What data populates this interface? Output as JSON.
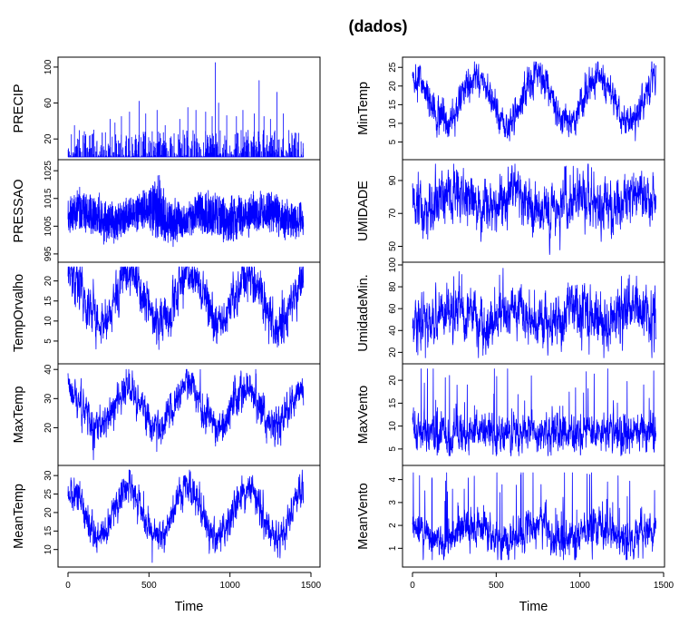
{
  "chart_data": {
    "type": "line",
    "title": "(dados)",
    "line_color": "#0000ff",
    "x_range": [
      0,
      1450
    ],
    "columns": [
      {
        "xlabel": "Time",
        "xticks": [
          0,
          500,
          1000,
          1500
        ],
        "xtick_labels": [
          "0",
          "500",
          "1000",
          "1500"
        ],
        "panels": [
          {
            "name": "PRECIP",
            "ylabel": "PRECIP",
            "ylim": [
              0,
              108
            ],
            "yticks": [
              20,
              60,
              100
            ],
            "ytick_labels": [
              "20",
              "60",
              "100"
            ],
            "kind": "precip",
            "spikes": [
              [
                40,
                35
              ],
              [
                110,
                25
              ],
              [
                160,
                30
              ],
              [
                260,
                42
              ],
              [
                290,
                38
              ],
              [
                330,
                45
              ],
              [
                380,
                50
              ],
              [
                440,
                62
              ],
              [
                480,
                48
              ],
              [
                550,
                52
              ],
              [
                600,
                35
              ],
              [
                690,
                42
              ],
              [
                740,
                55
              ],
              [
                790,
                52
              ],
              [
                850,
                50
              ],
              [
                890,
                45
              ],
              [
                910,
                105
              ],
              [
                930,
                60
              ],
              [
                980,
                46
              ],
              [
                1040,
                45
              ],
              [
                1080,
                52
              ],
              [
                1150,
                48
              ],
              [
                1180,
                85
              ],
              [
                1210,
                45
              ],
              [
                1250,
                42
              ],
              [
                1290,
                72
              ],
              [
                1330,
                48
              ]
            ]
          },
          {
            "name": "PRESSAO",
            "ylabel": "PRESSAO",
            "ylim": [
              993,
              1028
            ],
            "yticks": [
              995,
              1005,
              1015,
              1025
            ],
            "ytick_labels": [
              "995",
              "1005",
              "1015",
              "1025"
            ],
            "kind": "series",
            "mean": 1008,
            "amp": 3,
            "phase": 0,
            "noise": 5,
            "envelope": [
              [
                0,
                -7,
                7
              ],
              [
                100,
                -6,
                9
              ],
              [
                200,
                -6,
                8
              ],
              [
                300,
                -7,
                7
              ],
              [
                400,
                -5,
                7
              ],
              [
                500,
                -6,
                9
              ],
              [
                560,
                -8,
                18
              ],
              [
                600,
                -7,
                10
              ],
              [
                700,
                -7,
                6
              ],
              [
                800,
                -6,
                7
              ],
              [
                900,
                -8,
                9
              ],
              [
                1000,
                -7,
                9
              ],
              [
                1100,
                -5,
                8
              ],
              [
                1200,
                -5,
                8
              ],
              [
                1300,
                -6,
                9
              ],
              [
                1450,
                -6,
                7
              ]
            ]
          },
          {
            "name": "TempOrvalho",
            "ylabel": "TempOrvalho",
            "ylim": [
              0,
              24
            ],
            "yticks": [
              5,
              10,
              15,
              20
            ],
            "ytick_labels": [
              "5",
              "10",
              "15",
              "20"
            ],
            "kind": "series",
            "mean": 15.5,
            "amp": 6,
            "phase": 380,
            "noise": 3.2,
            "clip": [
              0.5,
              23.5
            ]
          },
          {
            "name": "MaxTemp",
            "ylabel": "MaxTemp",
            "ylim": [
              8,
              41
            ],
            "yticks": [
              20,
              30,
              40
            ],
            "ytick_labels": [
              "20",
              "30",
              "40"
            ],
            "kind": "series",
            "mean": 27,
            "amp": 6.5,
            "phase": 370,
            "noise": 3.4,
            "clip": [
              9,
              40
            ]
          },
          {
            "name": "MeanTemp",
            "ylabel": "MeanTemp",
            "ylim": [
              6,
              32
            ],
            "yticks": [
              10,
              15,
              20,
              25,
              30
            ],
            "ytick_labels": [
              "10",
              "15",
              "20",
              "25",
              "30"
            ],
            "kind": "series",
            "mean": 20,
            "amp": 6.5,
            "phase": 375,
            "noise": 2.6,
            "clip": [
              6.5,
              31.5
            ]
          }
        ]
      },
      {
        "xlabel": "Time",
        "xticks": [
          0,
          500,
          1000,
          1500
        ],
        "xtick_labels": [
          "0",
          "500",
          "1000",
          "1500"
        ],
        "panels": [
          {
            "name": "MinTemp",
            "ylabel": "MinTemp",
            "ylim": [
              1,
              27
            ],
            "yticks": [
              5,
              10,
              15,
              20,
              25
            ],
            "ytick_labels": [
              "5",
              "10",
              "15",
              "20",
              "25"
            ],
            "kind": "series",
            "mean": 16,
            "amp": 6,
            "phase": 380,
            "noise": 2.5,
            "clip": [
              1.5,
              26.5
            ]
          },
          {
            "name": "UMIDADE",
            "ylabel": "UMIDADE",
            "ylim": [
              42,
              101
            ],
            "yticks": [
              50,
              70,
              90
            ],
            "ytick_labels": [
              "50",
              "70",
              "90"
            ],
            "kind": "series",
            "mean": 76,
            "amp": 5,
            "phase": 250,
            "noise": 9,
            "clip": [
              45,
              100
            ]
          },
          {
            "name": "UmidadeMin.",
            "ylabel": "UmidadeMin.",
            "ylim": [
              12,
              100
            ],
            "yticks": [
              20,
              40,
              60,
              80,
              100
            ],
            "ytick_labels": [
              "20",
              "40",
              "60",
              "80",
              "100"
            ],
            "kind": "series",
            "mean": 52,
            "amp": 8,
            "phase": 250,
            "noise": 14,
            "clip": [
              15,
              97
            ]
          },
          {
            "name": "MaxVento",
            "ylabel": "MaxVento",
            "ylim": [
              2,
              23
            ],
            "yticks": [
              5,
              10,
              15,
              20
            ],
            "ytick_labels": [
              "5",
              "10",
              "15",
              "20"
            ],
            "kind": "series",
            "mean": 8.5,
            "amp": 0.8,
            "phase": 0,
            "noise": 2.2,
            "clip": [
              3.5,
              22.5
            ],
            "skew": true
          },
          {
            "name": "MeanVento",
            "ylabel": "MeanVento",
            "ylim": [
              0.3,
              4.5
            ],
            "yticks": [
              1,
              2,
              3,
              4
            ],
            "ytick_labels": [
              "1",
              "2",
              "3",
              "4"
            ],
            "kind": "series",
            "mean": 1.6,
            "amp": 0.3,
            "phase": 0,
            "noise": 0.45,
            "clip": [
              0.5,
              4.3
            ],
            "skew": true
          }
        ]
      }
    ]
  }
}
